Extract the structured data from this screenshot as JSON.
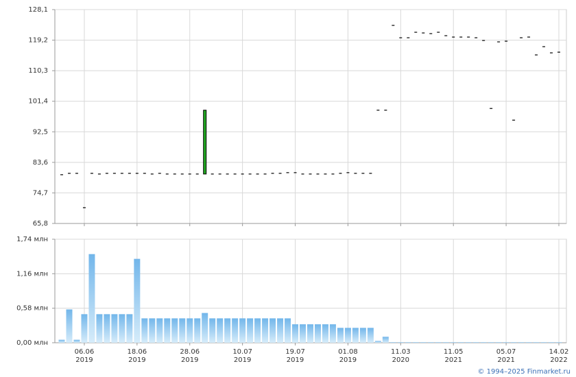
{
  "chart_data": {
    "type": "candlestick",
    "categories": [
      null,
      null,
      null,
      "06.06",
      null,
      null,
      null,
      null,
      null,
      null,
      "18.06",
      null,
      null,
      null,
      null,
      null,
      null,
      "28.06",
      null,
      null,
      null,
      null,
      null,
      null,
      "10.07",
      null,
      null,
      null,
      null,
      null,
      null,
      "19.07",
      null,
      null,
      null,
      null,
      null,
      null,
      "01.08",
      null,
      null,
      null,
      null,
      null,
      null,
      "11.03",
      null,
      null,
      null,
      null,
      null,
      null,
      "11.05",
      null,
      null,
      null,
      null,
      null,
      null,
      "05.07",
      null,
      null,
      null,
      null,
      null,
      null,
      "14.02"
    ],
    "category_years": [
      null,
      null,
      null,
      "2019",
      null,
      null,
      null,
      null,
      null,
      null,
      "2019",
      null,
      null,
      null,
      null,
      null,
      null,
      "2019",
      null,
      null,
      null,
      null,
      null,
      null,
      "2019",
      null,
      null,
      null,
      null,
      null,
      null,
      "2019",
      null,
      null,
      null,
      null,
      null,
      null,
      "2019",
      null,
      null,
      null,
      null,
      null,
      null,
      "2020",
      null,
      null,
      null,
      null,
      null,
      null,
      "2021",
      null,
      null,
      null,
      null,
      null,
      null,
      "2021",
      null,
      null,
      null,
      null,
      null,
      null,
      "2022"
    ],
    "open": [
      80.0,
      80.4,
      80.4,
      70.4,
      80.4,
      80.2,
      80.4,
      80.4,
      80.4,
      80.4,
      80.4,
      80.4,
      80.2,
      80.4,
      80.2,
      80.2,
      80.2,
      80.2,
      80.2,
      80.2,
      80.2,
      80.2,
      80.2,
      80.2,
      80.2,
      80.2,
      80.2,
      80.2,
      80.4,
      80.4,
      80.6,
      80.6,
      80.2,
      80.2,
      80.2,
      80.2,
      80.2,
      80.4,
      80.6,
      80.4,
      80.4,
      80.4,
      98.8,
      98.8,
      123.5,
      119.9,
      119.9,
      121.5,
      121.3,
      121.1,
      121.5,
      120.5,
      120.1,
      120.1,
      120.1,
      119.9,
      119.1,
      99.3,
      118.7,
      118.9,
      95.9,
      119.9,
      120.1,
      114.9,
      117.3,
      115.5,
      115.7
    ],
    "close": [
      80.0,
      80.4,
      80.4,
      70.4,
      80.4,
      80.2,
      80.4,
      80.4,
      80.4,
      80.4,
      80.4,
      80.4,
      80.2,
      80.4,
      80.2,
      80.2,
      80.2,
      80.2,
      80.2,
      98.8,
      80.2,
      80.2,
      80.2,
      80.2,
      80.2,
      80.2,
      80.2,
      80.2,
      80.4,
      80.4,
      80.6,
      80.6,
      80.2,
      80.2,
      80.2,
      80.2,
      80.2,
      80.4,
      80.6,
      80.4,
      80.4,
      80.4,
      98.8,
      98.8,
      123.5,
      119.9,
      119.9,
      121.5,
      121.3,
      121.1,
      121.5,
      120.5,
      120.1,
      120.1,
      120.1,
      119.9,
      119.1,
      99.3,
      118.7,
      118.9,
      95.9,
      119.9,
      120.1,
      114.9,
      117.3,
      115.5,
      115.7
    ],
    "up_color": "#22aa22",
    "ylim": [
      65.8,
      128.1
    ],
    "yticks": [
      {
        "value": 65.8,
        "label": "65,8"
      },
      {
        "value": 74.7,
        "label": "74,7"
      },
      {
        "value": 83.6,
        "label": "83,6"
      },
      {
        "value": 92.5,
        "label": "92,5"
      },
      {
        "value": 101.4,
        "label": "101,4"
      },
      {
        "value": 110.3,
        "label": "110,3"
      },
      {
        "value": 119.2,
        "label": "119,2"
      },
      {
        "value": 128.1,
        "label": "128,1"
      }
    ],
    "volume": [
      0.05,
      0.56,
      0.05,
      0.48,
      1.49,
      0.48,
      0.48,
      0.48,
      0.48,
      0.48,
      1.41,
      0.41,
      0.41,
      0.41,
      0.41,
      0.41,
      0.41,
      0.41,
      0.41,
      0.5,
      0.41,
      0.41,
      0.41,
      0.41,
      0.41,
      0.41,
      0.41,
      0.41,
      0.41,
      0.41,
      0.41,
      0.31,
      0.31,
      0.31,
      0.31,
      0.31,
      0.31,
      0.25,
      0.25,
      0.25,
      0.25,
      0.25,
      0.03,
      0.1,
      0.01,
      0.01,
      0.01,
      0.01,
      0.01,
      0.01,
      0.01,
      0.01,
      0.01,
      0.01,
      0.01,
      0.01,
      0.01,
      0.01,
      0.01,
      0.01,
      0.01,
      0.01,
      0.01,
      0.01,
      0.01,
      0.01,
      0.01
    ],
    "volume_ylim": [
      0,
      1.74
    ],
    "volume_yticks": [
      {
        "value": 0,
        "label": "0,00 млн"
      },
      {
        "value": 0.58,
        "label": "0,58 млн"
      },
      {
        "value": 1.16,
        "label": "1,16 млн"
      },
      {
        "value": 1.74,
        "label": "1,74 млн"
      }
    ],
    "grid": true,
    "copyright": "© 1994–2025 Finmarket.ru"
  }
}
